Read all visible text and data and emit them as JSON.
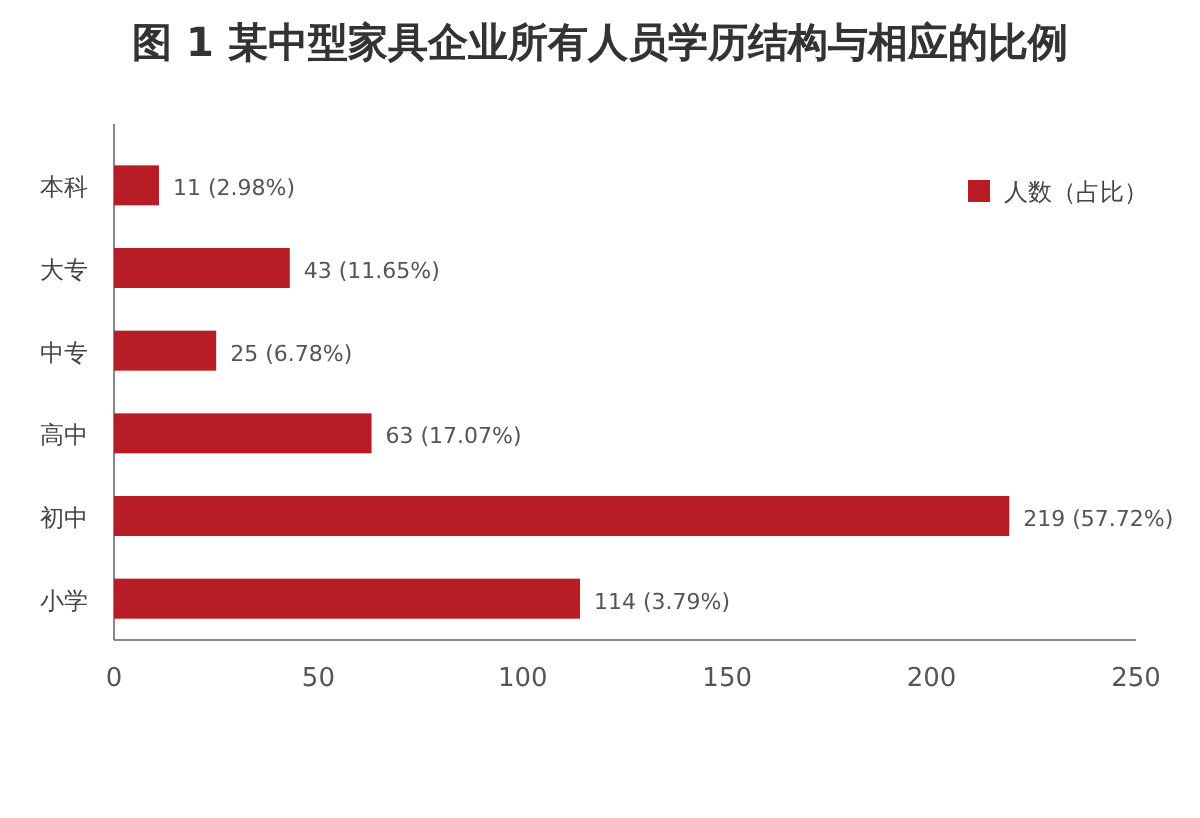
{
  "chart_data": {
    "type": "bar",
    "orientation": "horizontal",
    "title": "图 1  某中型家具企业所有人员学历结构与相应的比例",
    "categories": [
      "本科",
      "大专",
      "中专",
      "高中",
      "初中",
      "小学"
    ],
    "series": [
      {
        "name": "人数（占比）",
        "color": "#b81c25",
        "values": [
          11,
          43,
          25,
          63,
          219,
          114
        ],
        "value_labels": [
          "11 (2.98%)",
          "43 (11.65%)",
          "25 (6.78%)",
          "63 (17.07%)",
          "219 (57.72%)",
          "114 (3.79%)"
        ]
      }
    ],
    "xlim": [
      0,
      250
    ],
    "xticks": [
      0,
      50,
      100,
      150,
      200,
      250
    ],
    "grid": false,
    "legend": "top right"
  }
}
